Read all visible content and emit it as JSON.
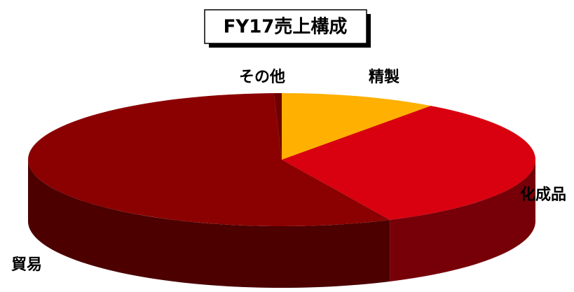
{
  "chart_data": {
    "type": "pie3d",
    "title": "FY17売上構成",
    "categories": [
      "精製",
      "化成品",
      "貿易",
      "その他"
    ],
    "values": [
      10,
      33,
      56.5,
      0.5
    ],
    "colors": [
      "#ffb000",
      "#d9000f",
      "#8b0000",
      "#6e0000"
    ]
  }
}
